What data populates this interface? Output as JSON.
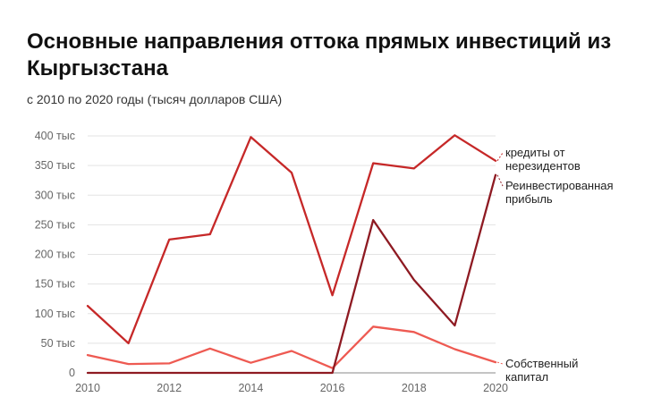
{
  "chart_data": {
    "type": "line",
    "title": "Основные направления оттока прямых инвестиций из Кыргызстана",
    "subtitle": "с 2010 по 2020 годы (тысяч долларов США)",
    "x": [
      2010,
      2011,
      2012,
      2013,
      2014,
      2015,
      2016,
      2017,
      2018,
      2019,
      2020
    ],
    "x_ticks": [
      {
        "value": 2010,
        "label": "2010"
      },
      {
        "value": 2012,
        "label": "2012"
      },
      {
        "value": 2014,
        "label": "2014"
      },
      {
        "value": 2016,
        "label": "2016"
      },
      {
        "value": 2018,
        "label": "2018"
      },
      {
        "value": 2020,
        "label": "2020"
      }
    ],
    "y_ticks": [
      {
        "value": 0,
        "label": "0"
      },
      {
        "value": 50000,
        "label": "50 тыс"
      },
      {
        "value": 100000,
        "label": "100 тыс"
      },
      {
        "value": 150000,
        "label": "150 тыс"
      },
      {
        "value": 200000,
        "label": "200 тыс"
      },
      {
        "value": 250000,
        "label": "250 тыс"
      },
      {
        "value": 300000,
        "label": "300 тыс"
      },
      {
        "value": 350000,
        "label": "350 тыс"
      },
      {
        "value": 400000,
        "label": "400 тыс"
      }
    ],
    "xlim": [
      2010,
      2020
    ],
    "ylim": [
      0,
      400000
    ],
    "grid": true,
    "legend": "direct labels at right end of lines",
    "series": [
      {
        "name": "кредиты от нерезидентов",
        "label_lines": [
          "кредиты от",
          "нерезидентов"
        ],
        "color": "#c62828",
        "values": [
          113000,
          50000,
          225000,
          234000,
          398000,
          338000,
          131000,
          354000,
          345000,
          401000,
          358000
        ]
      },
      {
        "name": "Реинвестированная прибыль",
        "label_lines": [
          "Реинвестированная",
          "прибыль"
        ],
        "color": "#8e1a22",
        "values": [
          0,
          0,
          0,
          0,
          0,
          0,
          0,
          258000,
          157000,
          80000,
          334000
        ]
      },
      {
        "name": "Собственный капитал",
        "label_lines": [
          "Собственный",
          "капитал"
        ],
        "color": "#ee5a52",
        "values": [
          30000,
          15000,
          16000,
          41000,
          17000,
          37000,
          8000,
          78000,
          69000,
          40000,
          18000
        ]
      }
    ]
  }
}
